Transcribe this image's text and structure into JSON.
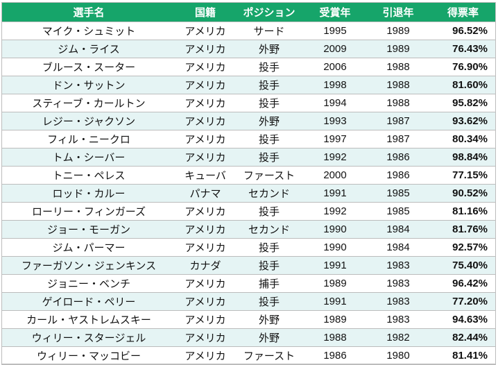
{
  "table": {
    "headers": {
      "name": "選手名",
      "nationality": "国籍",
      "position": "ポジション",
      "award_year": "受賞年",
      "retire_year": "引退年",
      "vote_rate": "得票率"
    },
    "rows": [
      {
        "name": "マイク・シュミット",
        "nationality": "アメリカ",
        "position": "サード",
        "award_year": "1995",
        "retire_year": "1989",
        "vote_rate": "96.52%"
      },
      {
        "name": "ジム・ライス",
        "nationality": "アメリカ",
        "position": "外野",
        "award_year": "2009",
        "retire_year": "1989",
        "vote_rate": "76.43%"
      },
      {
        "name": "ブルース・スーター",
        "nationality": "アメリカ",
        "position": "投手",
        "award_year": "2006",
        "retire_year": "1988",
        "vote_rate": "76.90%"
      },
      {
        "name": "ドン・サットン",
        "nationality": "アメリカ",
        "position": "投手",
        "award_year": "1998",
        "retire_year": "1988",
        "vote_rate": "81.60%"
      },
      {
        "name": "スティーブ・カールトン",
        "nationality": "アメリカ",
        "position": "投手",
        "award_year": "1994",
        "retire_year": "1988",
        "vote_rate": "95.82%"
      },
      {
        "name": "レジー・ジャクソン",
        "nationality": "アメリカ",
        "position": "外野",
        "award_year": "1993",
        "retire_year": "1987",
        "vote_rate": "93.62%"
      },
      {
        "name": "フィル・ニークロ",
        "nationality": "アメリカ",
        "position": "投手",
        "award_year": "1997",
        "retire_year": "1987",
        "vote_rate": "80.34%"
      },
      {
        "name": "トム・シーバー",
        "nationality": "アメリカ",
        "position": "投手",
        "award_year": "1992",
        "retire_year": "1986",
        "vote_rate": "98.84%"
      },
      {
        "name": "トニー・ペレス",
        "nationality": "キューバ",
        "position": "ファースト",
        "award_year": "2000",
        "retire_year": "1986",
        "vote_rate": "77.15%"
      },
      {
        "name": "ロッド・カルー",
        "nationality": "パナマ",
        "position": "セカンド",
        "award_year": "1991",
        "retire_year": "1985",
        "vote_rate": "90.52%"
      },
      {
        "name": "ローリー・フィンガーズ",
        "nationality": "アメリカ",
        "position": "投手",
        "award_year": "1992",
        "retire_year": "1985",
        "vote_rate": "81.16%"
      },
      {
        "name": "ジョー・モーガン",
        "nationality": "アメリカ",
        "position": "セカンド",
        "award_year": "1990",
        "retire_year": "1984",
        "vote_rate": "81.76%"
      },
      {
        "name": "ジム・パーマー",
        "nationality": "アメリカ",
        "position": "投手",
        "award_year": "1990",
        "retire_year": "1984",
        "vote_rate": "92.57%"
      },
      {
        "name": "ファーガソン・ジェンキンス",
        "nationality": "カナダ",
        "position": "投手",
        "award_year": "1991",
        "retire_year": "1983",
        "vote_rate": "75.40%"
      },
      {
        "name": "ジョニー・ベンチ",
        "nationality": "アメリカ",
        "position": "捕手",
        "award_year": "1989",
        "retire_year": "1983",
        "vote_rate": "96.42%"
      },
      {
        "name": "ゲイロード・ペリー",
        "nationality": "アメリカ",
        "position": "投手",
        "award_year": "1991",
        "retire_year": "1983",
        "vote_rate": "77.20%"
      },
      {
        "name": "カール・ヤストレムスキー",
        "nationality": "アメリカ",
        "position": "外野",
        "award_year": "1989",
        "retire_year": "1983",
        "vote_rate": "94.63%"
      },
      {
        "name": "ウィリー・スタージェル",
        "nationality": "アメリカ",
        "position": "外野",
        "award_year": "1988",
        "retire_year": "1982",
        "vote_rate": "82.44%"
      },
      {
        "name": "ウィリー・マッコビー",
        "nationality": "アメリカ",
        "position": "ファースト",
        "award_year": "1986",
        "retire_year": "1980",
        "vote_rate": "81.41%"
      }
    ]
  },
  "colors": {
    "header_bg": "#16a56a",
    "header_text": "#ffffff",
    "stripe_bg": "#e5f4f4",
    "grid_line": "#bcbcbc"
  }
}
